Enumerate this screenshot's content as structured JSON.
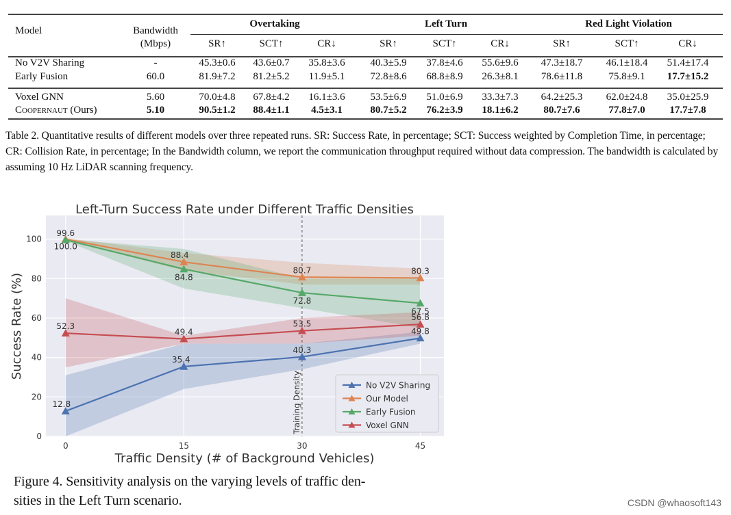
{
  "table": {
    "headers": {
      "model": "Model",
      "bandwidth_line1": "Bandwidth",
      "bandwidth_line2": "(Mbps)",
      "groups": [
        "Overtaking",
        "Left Turn",
        "Red Light Violation"
      ],
      "metrics": [
        "SR↑",
        "SCT↑",
        "CR↓",
        "SR↑",
        "SCT↑",
        "CR↓",
        "SR↑",
        "SCT↑",
        "CR↓"
      ]
    },
    "rows": [
      {
        "model": "No V2V Sharing",
        "bandwidth": "-",
        "values": [
          "45.3±0.6",
          "43.6±0.7",
          "35.8±3.6",
          "40.3±5.9",
          "37.8±4.6",
          "55.6±9.6",
          "47.3±18.7",
          "46.1±18.4",
          "51.4±17.4"
        ],
        "bold": [
          false,
          false,
          false,
          false,
          false,
          false,
          false,
          false,
          false
        ],
        "bold_model": false
      },
      {
        "model": "Early Fusion",
        "bandwidth": "60.0",
        "values": [
          "81.9±7.2",
          "81.2±5.2",
          "11.9±5.1",
          "72.8±8.6",
          "68.8±8.9",
          "26.3±8.1",
          "78.6±11.8",
          "75.8±9.1",
          "17.7±15.2"
        ],
        "bold": [
          false,
          false,
          false,
          false,
          false,
          false,
          false,
          false,
          true
        ],
        "bold_model": false
      },
      {
        "model": "Voxel GNN",
        "bandwidth": "5.60",
        "values": [
          "70.0±4.8",
          "67.8±4.2",
          "16.1±3.6",
          "53.5±6.9",
          "51.0±6.9",
          "33.3±7.3",
          "64.2±25.3",
          "62.0±24.8",
          "35.0±25.9"
        ],
        "bold": [
          false,
          false,
          false,
          false,
          false,
          false,
          false,
          false,
          false
        ],
        "bold_model": false
      },
      {
        "model": "Coopernaut (Ours)",
        "bandwidth": "5.10",
        "values": [
          "90.5±1.2",
          "88.4±1.1",
          "4.5±3.1",
          "80.7±5.2",
          "76.2±3.9",
          "18.1±6.2",
          "80.7±7.6",
          "77.8±7.0",
          "17.7±7.8"
        ],
        "bold": [
          true,
          true,
          true,
          true,
          true,
          true,
          true,
          true,
          true
        ],
        "bold_model": true
      }
    ],
    "caption": "Table 2. Quantitative results of different models over three repeated runs. SR: Success Rate, in percentage; SCT: Success weighted by Completion Time, in percentage; CR: Collision Rate, in percentage; In the Bandwidth column, we report the communication throughput required without data compression. The bandwidth is calculated by assuming 10 Hz LiDAR scanning frequency."
  },
  "chart_data": {
    "type": "line",
    "title": "Left-Turn Success Rate under Different Traffic Densities",
    "xlabel": "Traffic Density (# of Background Vehicles)",
    "ylabel": "Success Rate (%)",
    "x": [
      0,
      15,
      30,
      45
    ],
    "xticks": [
      "0",
      "15",
      "30",
      "45"
    ],
    "yticks": [
      "0",
      "20",
      "40",
      "60",
      "80",
      "100"
    ],
    "xlim": [
      -2.5,
      48
    ],
    "ylim": [
      0,
      112
    ],
    "grid": true,
    "legend_position": "bottom-right",
    "vline": {
      "x": 30,
      "label": "Training Density",
      "style": "dashed"
    },
    "series": [
      {
        "name": "No V2V Sharing",
        "color": "#4c72b0",
        "values": [
          12.8,
          35.4,
          40.3,
          49.8
        ],
        "band_low": [
          -5,
          24,
          34,
          47
        ],
        "band_high": [
          31,
          47,
          47,
          53
        ],
        "labels": [
          "12.8",
          "35.4",
          "40.3",
          "49.8"
        ]
      },
      {
        "name": "Our Model",
        "color": "#dd8452",
        "values": [
          100.0,
          88.4,
          80.7,
          80.3
        ],
        "band_low": [
          99.5,
          84,
          77,
          77
        ],
        "band_high": [
          100.5,
          93,
          88,
          85
        ],
        "labels": [
          "100.0",
          "88.4",
          "80.7",
          "80.3"
        ]
      },
      {
        "name": "Early Fusion",
        "color": "#55a868",
        "values": [
          99.6,
          84.8,
          72.8,
          67.5
        ],
        "band_low": [
          99,
          75,
          65,
          55
        ],
        "band_high": [
          100,
          95,
          80,
          80
        ],
        "labels": [
          "99.6",
          "84.8",
          "72.8",
          "67.5"
        ]
      },
      {
        "name": "Voxel GNN",
        "color": "#c44e52",
        "values": [
          52.3,
          49.4,
          53.5,
          56.8
        ],
        "band_low": [
          35,
          47,
          47,
          51
        ],
        "band_high": [
          70,
          51,
          60,
          63
        ],
        "labels": [
          "52.3",
          "49.4",
          "53.5",
          "56.8"
        ]
      }
    ]
  },
  "figure_caption": {
    "line1": "Figure 4. Sensitivity analysis on the varying levels of traffic den-",
    "line2": "sities in the Left Turn scenario."
  },
  "watermark": "CSDN @whaosoft143"
}
